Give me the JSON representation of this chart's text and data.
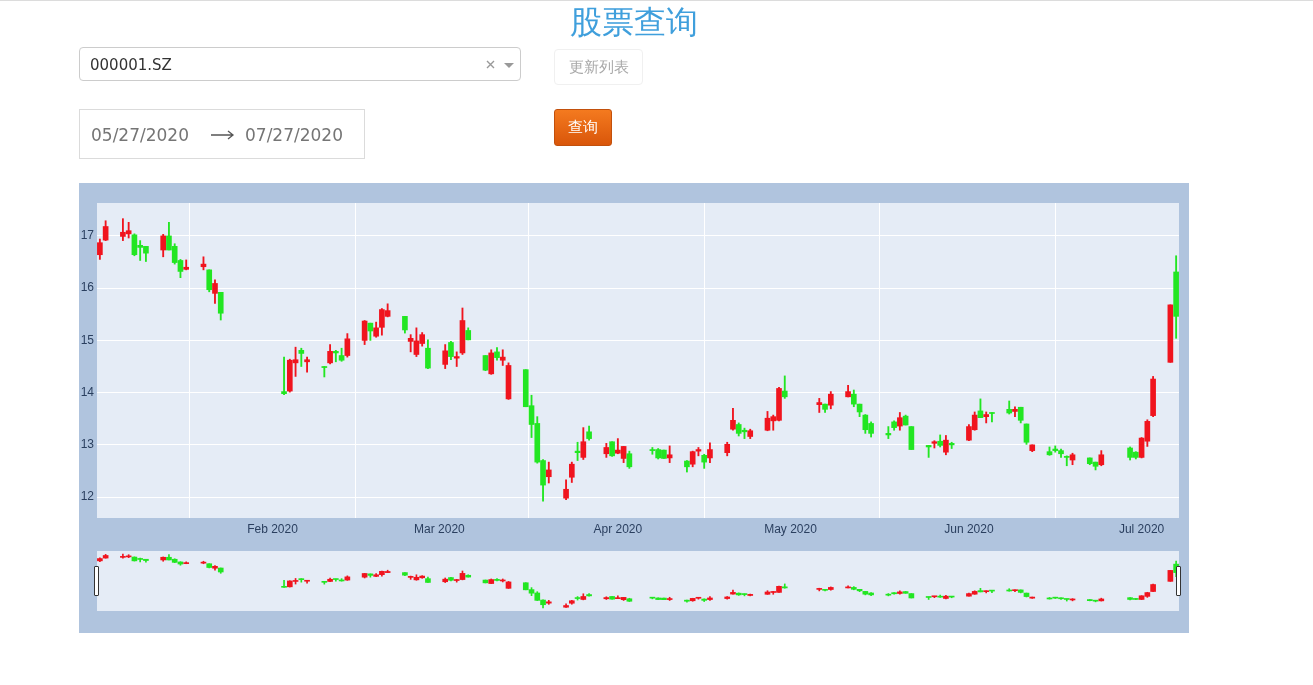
{
  "chart_data": {
    "type": "candlestick",
    "title": "股票查询",
    "annotations": [
      "000001.SZ",
      "更新列表",
      "05/27/2020",
      "07/27/2020",
      "查询"
    ],
    "x": [
      "2020-01-02",
      "2020-01-03",
      "2020-01-06",
      "2020-01-07",
      "2020-01-08",
      "2020-01-09",
      "2020-01-10",
      "2020-01-13",
      "2020-01-14",
      "2020-01-15",
      "2020-01-16",
      "2020-01-17",
      "2020-01-20",
      "2020-01-21",
      "2020-01-22",
      "2020-01-23",
      "2020-02-03",
      "2020-02-04",
      "2020-02-05",
      "2020-02-06",
      "2020-02-07",
      "2020-02-10",
      "2020-02-11",
      "2020-02-12",
      "2020-02-13",
      "2020-02-14",
      "2020-02-17",
      "2020-02-18",
      "2020-02-19",
      "2020-02-20",
      "2020-02-21",
      "2020-02-24",
      "2020-02-25",
      "2020-02-26",
      "2020-02-27",
      "2020-02-28",
      "2020-03-02",
      "2020-03-03",
      "2020-03-04",
      "2020-03-05",
      "2020-03-06",
      "2020-03-09",
      "2020-03-10",
      "2020-03-11",
      "2020-03-12",
      "2020-03-13",
      "2020-03-16",
      "2020-03-17",
      "2020-03-18",
      "2020-03-19",
      "2020-03-20",
      "2020-03-23",
      "2020-03-24",
      "2020-03-25",
      "2020-03-26",
      "2020-03-27",
      "2020-03-30",
      "2020-03-31",
      "2020-04-01",
      "2020-04-02",
      "2020-04-03",
      "2020-04-07",
      "2020-04-08",
      "2020-04-09",
      "2020-04-10",
      "2020-04-13",
      "2020-04-14",
      "2020-04-15",
      "2020-04-16",
      "2020-04-17",
      "2020-04-20",
      "2020-04-21",
      "2020-04-22",
      "2020-04-23",
      "2020-04-24",
      "2020-04-27",
      "2020-04-28",
      "2020-04-29",
      "2020-04-30",
      "2020-05-06",
      "2020-05-07",
      "2020-05-08",
      "2020-05-11",
      "2020-05-12",
      "2020-05-13",
      "2020-05-14",
      "2020-05-15",
      "2020-05-18",
      "2020-05-19",
      "2020-05-20",
      "2020-05-21",
      "2020-05-22",
      "2020-05-25",
      "2020-05-26",
      "2020-05-27",
      "2020-05-28",
      "2020-05-29",
      "2020-06-01",
      "2020-06-02",
      "2020-06-03",
      "2020-06-04",
      "2020-06-05",
      "2020-06-08",
      "2020-06-09",
      "2020-06-10",
      "2020-06-11",
      "2020-06-12",
      "2020-06-15",
      "2020-06-16",
      "2020-06-17",
      "2020-06-18",
      "2020-06-19",
      "2020-06-22",
      "2020-06-23",
      "2020-06-24",
      "2020-06-29",
      "2020-06-30",
      "2020-07-01",
      "2020-07-02",
      "2020-07-03",
      "2020-07-06",
      "2020-07-07"
    ],
    "ohlc": [
      [
        16.64,
        16.94,
        16.55,
        16.87
      ],
      [
        16.92,
        17.29,
        16.91,
        17.18
      ],
      [
        16.99,
        17.33,
        16.91,
        17.07
      ],
      [
        17.04,
        17.26,
        16.96,
        17.1
      ],
      [
        17.02,
        17.04,
        16.62,
        16.64
      ],
      [
        16.82,
        16.91,
        16.53,
        16.78
      ],
      [
        16.8,
        16.8,
        16.51,
        16.67
      ],
      [
        16.73,
        17.03,
        16.6,
        17.0
      ],
      [
        17.0,
        17.26,
        16.73,
        16.73
      ],
      [
        16.8,
        16.85,
        16.46,
        16.49
      ],
      [
        16.53,
        16.55,
        16.2,
        16.32
      ],
      [
        16.36,
        16.54,
        16.35,
        16.4
      ],
      [
        16.41,
        16.6,
        16.35,
        16.46
      ],
      [
        16.35,
        16.35,
        15.93,
        15.97
      ],
      [
        15.9,
        16.16,
        15.71,
        16.09
      ],
      [
        15.92,
        15.92,
        15.39,
        15.52
      ],
      [
        14.02,
        14.68,
        13.96,
        13.98
      ],
      [
        14.03,
        14.64,
        14.01,
        14.62
      ],
      [
        14.57,
        14.87,
        14.31,
        14.63
      ],
      [
        14.81,
        14.85,
        14.5,
        14.75
      ],
      [
        14.59,
        14.68,
        14.39,
        14.63
      ],
      [
        14.5,
        14.5,
        14.3,
        14.48
      ],
      [
        14.57,
        14.92,
        14.55,
        14.79
      ],
      [
        14.79,
        14.81,
        14.59,
        14.76
      ],
      [
        14.71,
        14.85,
        14.6,
        14.62
      ],
      [
        14.71,
        15.13,
        14.68,
        15.03
      ],
      [
        15.0,
        15.38,
        14.92,
        15.37
      ],
      [
        15.33,
        15.33,
        15.0,
        15.18
      ],
      [
        15.08,
        15.35,
        15.06,
        15.24
      ],
      [
        15.25,
        15.61,
        15.1,
        15.59
      ],
      [
        15.46,
        15.7,
        15.45,
        15.57
      ],
      [
        15.46,
        15.46,
        15.14,
        15.2
      ],
      [
        14.98,
        15.11,
        14.78,
        15.04
      ],
      [
        14.73,
        15.24,
        14.69,
        14.99
      ],
      [
        14.94,
        15.15,
        14.89,
        15.11
      ],
      [
        14.85,
        15.01,
        14.46,
        14.47
      ],
      [
        14.54,
        14.92,
        14.46,
        14.8
      ],
      [
        14.96,
        14.98,
        14.63,
        14.69
      ],
      [
        14.66,
        14.78,
        14.5,
        14.69
      ],
      [
        14.76,
        15.62,
        14.73,
        15.38
      ],
      [
        15.19,
        15.24,
        15.01,
        15.01
      ],
      [
        14.71,
        14.71,
        14.42,
        14.43
      ],
      [
        14.36,
        14.82,
        14.35,
        14.76
      ],
      [
        14.78,
        14.86,
        14.62,
        14.67
      ],
      [
        14.62,
        14.82,
        14.52,
        14.68
      ],
      [
        13.88,
        14.57,
        13.87,
        14.52
      ],
      [
        14.44,
        14.44,
        13.73,
        13.73
      ],
      [
        13.75,
        13.95,
        13.14,
        13.39
      ],
      [
        13.41,
        13.54,
        12.65,
        12.67
      ],
      [
        12.7,
        12.72,
        11.92,
        12.23
      ],
      [
        12.39,
        12.67,
        12.27,
        12.52
      ],
      [
        11.98,
        12.33,
        11.95,
        12.15
      ],
      [
        12.38,
        12.67,
        12.28,
        12.63
      ],
      [
        12.88,
        13.05,
        12.7,
        12.85
      ],
      [
        12.76,
        13.33,
        12.72,
        13.06
      ],
      [
        13.25,
        13.36,
        13.09,
        13.12
      ],
      [
        12.83,
        13.03,
        12.76,
        12.95
      ],
      [
        13.06,
        13.06,
        12.78,
        12.79
      ],
      [
        12.84,
        13.12,
        12.83,
        12.9
      ],
      [
        12.74,
        12.97,
        12.66,
        12.97
      ],
      [
        12.83,
        12.88,
        12.55,
        12.58
      ],
      [
        12.91,
        12.95,
        12.82,
        12.89
      ],
      [
        12.91,
        12.93,
        12.73,
        12.75
      ],
      [
        12.9,
        12.9,
        12.74,
        12.74
      ],
      [
        12.75,
        12.98,
        12.66,
        12.81
      ],
      [
        12.69,
        12.7,
        12.48,
        12.58
      ],
      [
        12.63,
        12.88,
        12.58,
        12.87
      ],
      [
        12.88,
        12.95,
        12.79,
        12.91
      ],
      [
        12.8,
        12.82,
        12.55,
        12.67
      ],
      [
        12.75,
        13.04,
        12.66,
        12.91
      ],
      [
        12.85,
        13.05,
        12.79,
        13.01
      ],
      [
        13.3,
        13.7,
        13.28,
        13.47
      ],
      [
        13.39,
        13.42,
        13.17,
        13.22
      ],
      [
        13.28,
        13.32,
        13.12,
        13.25
      ],
      [
        13.16,
        13.3,
        13.12,
        13.27
      ],
      [
        13.28,
        13.64,
        13.27,
        13.51
      ],
      [
        13.46,
        13.57,
        13.28,
        13.54
      ],
      [
        13.47,
        14.1,
        13.46,
        14.08
      ],
      [
        14.03,
        14.32,
        13.89,
        13.92
      ],
      [
        13.77,
        13.89,
        13.62,
        13.81
      ],
      [
        13.78,
        13.78,
        13.62,
        13.68
      ],
      [
        13.76,
        14.02,
        13.69,
        13.97
      ],
      [
        13.92,
        14.14,
        13.92,
        14.02
      ],
      [
        13.97,
        14.05,
        13.73,
        13.78
      ],
      [
        13.78,
        13.78,
        13.54,
        13.63
      ],
      [
        13.57,
        13.58,
        13.22,
        13.29
      ],
      [
        13.41,
        13.44,
        13.15,
        13.22
      ],
      [
        13.22,
        13.35,
        13.12,
        13.19
      ],
      [
        13.44,
        13.46,
        13.28,
        13.33
      ],
      [
        13.36,
        13.62,
        13.28,
        13.52
      ],
      [
        13.55,
        13.57,
        13.38,
        13.38
      ],
      [
        13.35,
        13.35,
        12.91,
        12.91
      ],
      [
        12.99,
        12.99,
        12.76,
        12.96
      ],
      [
        13.03,
        13.08,
        12.94,
        13.06
      ],
      [
        13.07,
        13.19,
        12.96,
        12.99
      ],
      [
        12.86,
        13.18,
        12.81,
        13.09
      ],
      [
        13.03,
        13.05,
        12.93,
        13.0
      ],
      [
        13.09,
        13.39,
        13.08,
        13.35
      ],
      [
        13.29,
        13.63,
        13.28,
        13.57
      ],
      [
        13.65,
        13.88,
        13.52,
        13.52
      ],
      [
        13.54,
        13.63,
        13.42,
        13.58
      ],
      [
        13.62,
        13.62,
        13.44,
        13.6
      ],
      [
        13.68,
        13.84,
        13.59,
        13.61
      ],
      [
        13.64,
        13.73,
        13.54,
        13.68
      ],
      [
        13.72,
        13.72,
        13.42,
        13.47
      ],
      [
        13.4,
        13.4,
        13.01,
        13.05
      ],
      [
        12.89,
        13.0,
        12.87,
        13.0
      ],
      [
        12.87,
        12.96,
        12.8,
        12.81
      ],
      [
        12.92,
        12.98,
        12.86,
        12.89
      ],
      [
        12.89,
        12.92,
        12.76,
        12.83
      ],
      [
        12.78,
        12.79,
        12.6,
        12.76
      ],
      [
        12.71,
        12.84,
        12.62,
        12.81
      ],
      [
        12.75,
        12.75,
        12.62,
        12.64
      ],
      [
        12.67,
        12.67,
        12.52,
        12.59
      ],
      [
        12.62,
        12.89,
        12.6,
        12.81
      ],
      [
        12.94,
        12.96,
        12.71,
        12.76
      ],
      [
        12.86,
        12.87,
        12.73,
        12.76
      ],
      [
        12.76,
        13.14,
        12.75,
        13.13
      ],
      [
        13.07,
        13.48,
        12.97,
        13.45
      ],
      [
        13.56,
        14.31,
        13.54,
        14.26
      ],
      [
        14.58,
        15.68,
        14.58,
        15.68
      ],
      [
        16.31,
        16.62,
        15.04,
        15.46
      ]
    ],
    "colors": [
      "#f0141e",
      "#f0141e",
      "#f0141e",
      "#f0141e",
      "#22e622",
      "#22e622",
      "#22e622",
      "#f0141e",
      "#22e622",
      "#22e622",
      "#22e622",
      "#f0141e",
      "#f0141e",
      "#22e622",
      "#f0141e",
      "#22e622",
      "#22e622",
      "#f0141e",
      "#f0141e",
      "#22e622",
      "#f0141e",
      "#22e622",
      "#f0141e",
      "#22e622",
      "#22e622",
      "#f0141e",
      "#f0141e",
      "#22e622",
      "#f0141e",
      "#f0141e",
      "#f0141e",
      "#22e622",
      "#f0141e",
      "#f0141e",
      "#f0141e",
      "#22e622",
      "#f0141e",
      "#22e622",
      "#f0141e",
      "#f0141e",
      "#22e622",
      "#22e622",
      "#f0141e",
      "#22e622",
      "#f0141e",
      "#f0141e",
      "#22e622",
      "#22e622",
      "#22e622",
      "#22e622",
      "#f0141e",
      "#f0141e",
      "#f0141e",
      "#22e622",
      "#f0141e",
      "#22e622",
      "#f0141e",
      "#22e622",
      "#f0141e",
      "#f0141e",
      "#22e622",
      "#22e622",
      "#22e622",
      "#22e622",
      "#f0141e",
      "#22e622",
      "#f0141e",
      "#f0141e",
      "#22e622",
      "#f0141e",
      "#f0141e",
      "#f0141e",
      "#22e622",
      "#22e622",
      "#f0141e",
      "#f0141e",
      "#f0141e",
      "#f0141e",
      "#22e622",
      "#f0141e",
      "#22e622",
      "#f0141e",
      "#f0141e",
      "#22e622",
      "#22e622",
      "#22e622",
      "#22e622",
      "#22e622",
      "#22e622",
      "#f0141e",
      "#22e622",
      "#22e622",
      "#22e622",
      "#f0141e",
      "#22e622",
      "#f0141e",
      "#22e622",
      "#f0141e",
      "#f0141e",
      "#22e622",
      "#f0141e",
      "#22e622",
      "#22e622",
      "#f0141e",
      "#22e622",
      "#22e622",
      "#f0141e",
      "#22e622",
      "#22e622",
      "#22e622",
      "#22e622",
      "#f0141e",
      "#22e622",
      "#22e622",
      "#f0141e",
      "#22e622",
      "#22e622",
      "#f0141e",
      "#f0141e",
      "#f0141e",
      "#f0141e",
      "#22e622"
    ],
    "xlim": [
      "2020-01-01T12:00",
      "2020-07-07T12:00"
    ],
    "xticks": [
      {
        "value": "2020-02-01",
        "label": "Feb 2020"
      },
      {
        "value": "2020-03-01",
        "label": "Mar 2020"
      },
      {
        "value": "2020-04-01",
        "label": "Apr 2020"
      },
      {
        "value": "2020-05-01",
        "label": "May 2020"
      },
      {
        "value": "2020-06-01",
        "label": "Jun 2020"
      },
      {
        "value": "2020-07-01",
        "label": "Jul 2020"
      }
    ],
    "ylim": [
      11.6,
      17.63
    ],
    "yticks": [
      12,
      13,
      14,
      15,
      16,
      17
    ],
    "grid": true
  }
}
